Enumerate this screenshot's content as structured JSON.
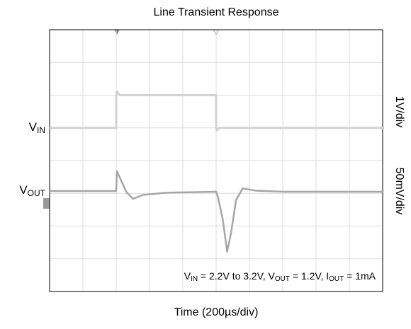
{
  "chart_data": {
    "type": "line",
    "title": "Line Transient Response",
    "xlabel": "Time (200µs/div)",
    "right_labels": [
      "1V/div",
      "50mV/div"
    ],
    "annotation": [
      {
        "text": "V"
      },
      {
        "text": "IN",
        "sub": true
      },
      {
        "text": " = 2.2V to 3.2V, V"
      },
      {
        "text": "OUT",
        "sub": true
      },
      {
        "text": " = 1.2V, I"
      },
      {
        "text": "OUT",
        "sub": true
      },
      {
        "text": " = 1mA"
      }
    ],
    "xlim": [
      0,
      10
    ],
    "ylim": [
      0,
      8
    ],
    "xticks": [
      0,
      1,
      2,
      3,
      4,
      5,
      6,
      7,
      8,
      9,
      10
    ],
    "yticks": [
      0,
      1,
      2,
      3,
      4,
      5,
      6,
      7,
      8
    ],
    "grid": true,
    "series": [
      {
        "label": {
          "main": "V",
          "sub": "IN"
        },
        "color": "#d2d2d2",
        "width": 3,
        "x": [
          0,
          2,
          2,
          2.02,
          2.1,
          5,
          5,
          5.02,
          5.1,
          10
        ],
        "values": [
          5,
          5,
          6,
          6.12,
          6,
          6,
          5,
          4.92,
          5,
          5
        ]
      },
      {
        "label": {
          "main": "V",
          "sub": "OUT"
        },
        "color": "#a6a6a6",
        "width": 2.5,
        "x": [
          0,
          2,
          2.02,
          2.1,
          2.3,
          2.5,
          2.8,
          3.5,
          5,
          5.05,
          5.2,
          5.33,
          5.45,
          5.6,
          5.8,
          6.2,
          7,
          10
        ],
        "values": [
          3.07,
          3.07,
          3.68,
          3.5,
          3.05,
          2.83,
          2.95,
          3.02,
          3.05,
          2.9,
          2.2,
          1.22,
          1.8,
          2.8,
          3.15,
          3.08,
          3.05,
          3.05
        ]
      }
    ]
  }
}
